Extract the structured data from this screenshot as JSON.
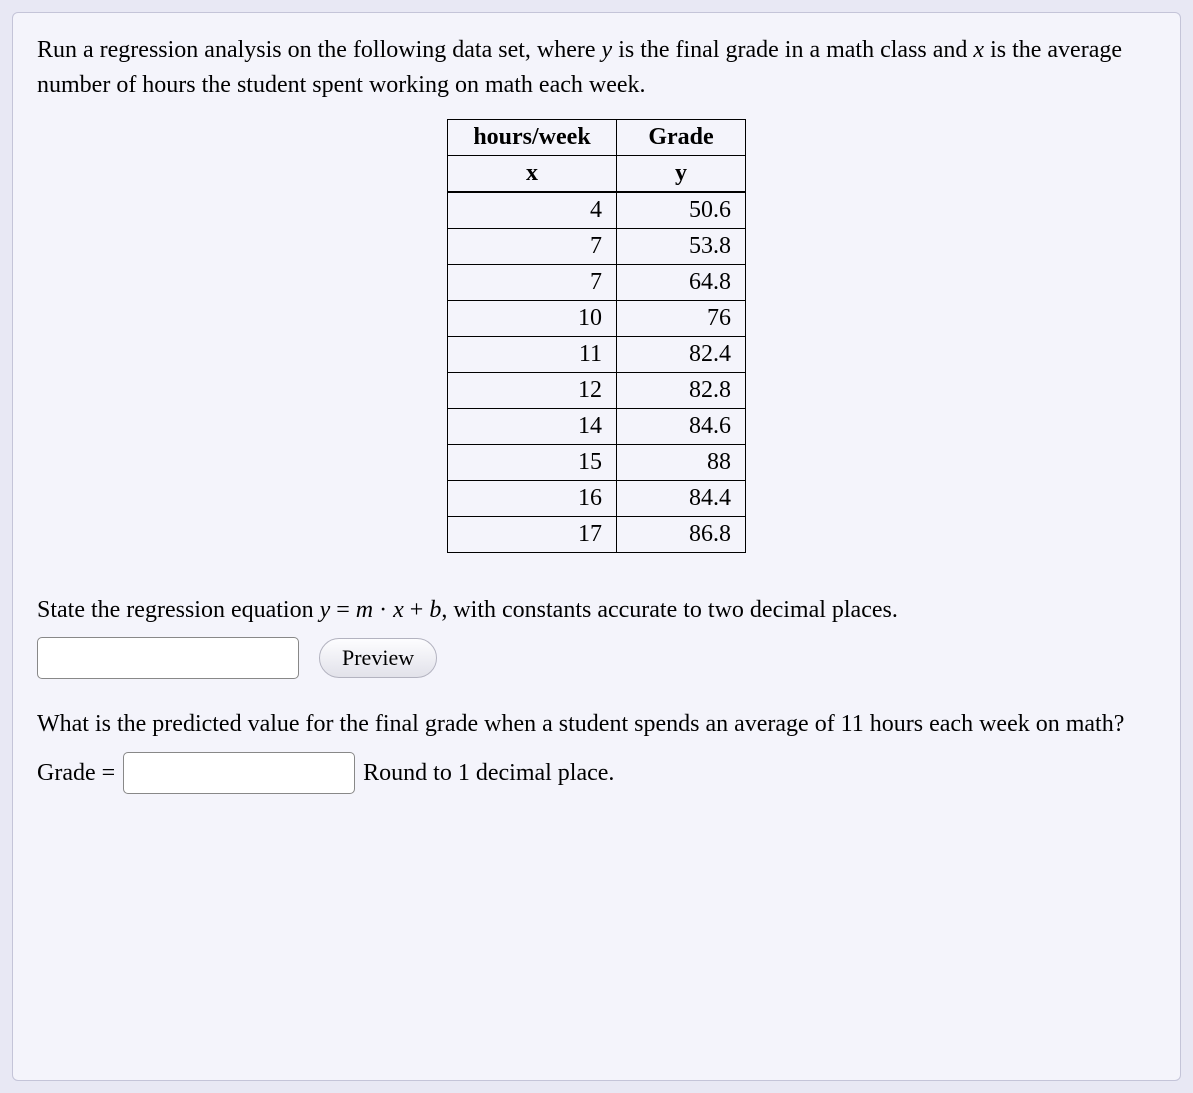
{
  "intro": {
    "pre1": "Run a regression analysis on the following data set, where ",
    "yvar": "y",
    "mid1": " is the final grade in a math class and ",
    "xvar": "x",
    "post1": " is the average number of hours the student spent working on math each week."
  },
  "table": {
    "col1_top": "hours/week",
    "col1_bot": "x",
    "col2_top": "Grade",
    "col2_bot": "y",
    "rows": [
      {
        "x": "4",
        "y": "50.6"
      },
      {
        "x": "7",
        "y": "53.8"
      },
      {
        "x": "7",
        "y": "64.8"
      },
      {
        "x": "10",
        "y": "76"
      },
      {
        "x": "11",
        "y": "82.4"
      },
      {
        "x": "12",
        "y": "82.8"
      },
      {
        "x": "14",
        "y": "84.6"
      },
      {
        "x": "15",
        "y": "88"
      },
      {
        "x": "16",
        "y": "84.4"
      },
      {
        "x": "17",
        "y": "86.8"
      }
    ]
  },
  "q1": {
    "pre": "State the regression equation ",
    "y": "y",
    "eq": " = ",
    "m": "m",
    "dot": " · ",
    "x": "x",
    "plus": " + ",
    "b": "b",
    "post": ", with constants accurate to two decimal places."
  },
  "preview_label": "Preview",
  "q2": {
    "text": "What is the predicted value for the final grade when a student spends an average of 11 hours each week on math?",
    "grade_label": "Grade = ",
    "round_text": "Round to 1 decimal place."
  },
  "colors": {
    "page_bg": "#e8e8f4",
    "card_bg": "#f4f4fb",
    "card_border": "#c4c4d8",
    "table_border": "#000000"
  }
}
